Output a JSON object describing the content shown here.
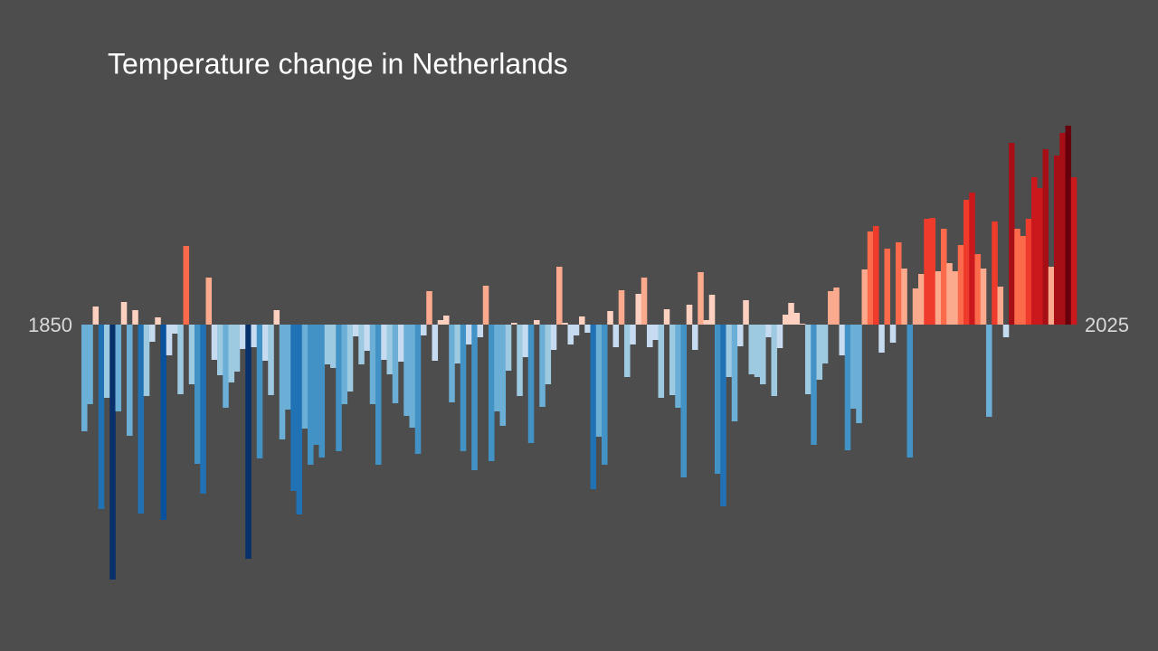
{
  "chart_data": {
    "type": "bar",
    "title": "Temperature change in Netherlands",
    "xlim": [
      1850,
      2025
    ],
    "ylim": [
      -3,
      2.5
    ],
    "colors": [
      "#08306b",
      "#08519c",
      "#2171b5",
      "#4292c6",
      "#6baed6",
      "#9ecae1",
      "#c6dbef",
      "#fdd0c0",
      "#fcaa8e",
      "#fb6a4a",
      "#ef3b2c",
      "#cb181d",
      "#a50f15",
      "#67000d"
    ],
    "values": [
      -1.18,
      -0.88,
      0.2,
      -2.04,
      -0.81,
      -2.82,
      -0.96,
      0.25,
      -1.23,
      0.16,
      -2.09,
      -0.79,
      -0.19,
      0.08,
      -2.16,
      -0.34,
      -0.1,
      -0.77,
      0.87,
      -0.66,
      -1.54,
      -1.87,
      0.52,
      -0.39,
      -0.56,
      -0.92,
      -0.64,
      -0.52,
      -0.27,
      -2.59,
      -0.25,
      -1.48,
      -0.4,
      -0.78,
      0.16,
      -1.27,
      -0.94,
      -1.84,
      -2.1,
      -1.15,
      -1.55,
      -1.33,
      -1.47,
      -0.44,
      -0.48,
      -1.4,
      -0.88,
      -0.74,
      -0.13,
      -0.44,
      -0.29,
      -0.88,
      -1.55,
      -0.39,
      -0.55,
      -0.87,
      -0.41,
      -1.01,
      -1.14,
      -1.43,
      -0.12,
      0.37,
      -0.4,
      0.05,
      0.1,
      -0.86,
      -0.43,
      -1.4,
      -0.22,
      -1.61,
      -0.14,
      0.43,
      -1.51,
      -0.96,
      -1.12,
      -0.51,
      0.02,
      -0.79,
      -0.36,
      -1.31,
      0.05,
      -0.91,
      -0.66,
      -0.28,
      0.64,
      0.02,
      -0.22,
      -0.12,
      0.09,
      -0.09,
      -1.82,
      -1.24,
      -1.55,
      0.15,
      -0.25,
      0.38,
      -0.58,
      -0.22,
      0.34,
      0.52,
      -0.25,
      -0.17,
      -0.81,
      0.17,
      -0.78,
      -0.92,
      -1.69,
      0.22,
      -0.28,
      0.58,
      0.05,
      0.33,
      -1.65,
      -2.01,
      -0.58,
      -1.07,
      -0.24,
      0.27,
      -0.55,
      -0.58,
      -0.66,
      -0.14,
      -0.79,
      -0.26,
      0.11,
      0.24,
      0.13,
      0.01,
      -0.77,
      -1.33,
      -0.61,
      -0.43,
      0.37,
      0.41,
      -0.34,
      -1.39,
      -0.93,
      -1.09,
      0.61,
      1.03,
      1.09,
      -0.31,
      0.84,
      -0.2,
      0.91,
      0.62,
      -1.47,
      0.4,
      0.56,
      1.17,
      1.18,
      0.59,
      1.06,
      0.68,
      0.59,
      0.88,
      1.38,
      1.46,
      0.78,
      0.62,
      -1.02,
      1.14,
      0.42,
      -0.14,
      2.01,
      1.06,
      0.98,
      1.17,
      1.63,
      1.51,
      1.94,
      0.64,
      1.87,
      2.12,
      2.2,
      1.63
    ]
  }
}
